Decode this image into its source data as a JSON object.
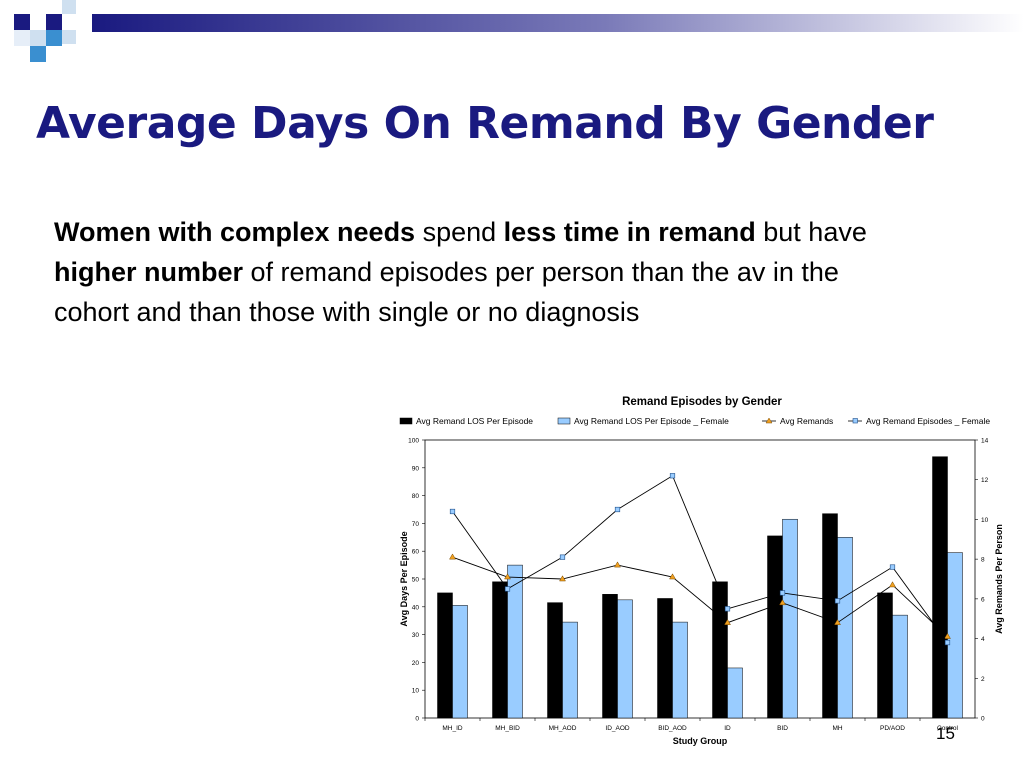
{
  "slide": {
    "title": "Average Days On Remand By Gender",
    "body": [
      {
        "text": "Women with complex needs",
        "bold": true
      },
      {
        "text": " spend ",
        "bold": false
      },
      {
        "text": "less time in remand",
        "bold": true
      },
      {
        "text": " but have ",
        "bold": false
      },
      {
        "text": "higher number",
        "bold": true
      },
      {
        "text": " of remand episodes per person than the av in the cohort and than those with single or no diagnosis",
        "bold": false
      }
    ],
    "slide_number": "15",
    "colors": {
      "title": "#1a1a80",
      "decor_dark": "#1a1a80",
      "decor_light": "#3a8fd0"
    }
  },
  "chart_data": {
    "type": "bar",
    "title": "Remand Episodes by Gender",
    "xlabel": "Study Group",
    "ylabel": "Avg Days Per Episode",
    "y2label": "Avg Remands Per Person",
    "categories": [
      "MH_ID",
      "MH_BID",
      "MH_AOD",
      "ID_AOD",
      "BID_AOD",
      "ID",
      "BID",
      "MH",
      "PD/AOD",
      "Control"
    ],
    "ylim": [
      0,
      100
    ],
    "y2lim": [
      0,
      14
    ],
    "yticks": [
      "0",
      "10",
      "20",
      "30",
      "40",
      "50",
      "60",
      "70",
      "80",
      "90",
      "100"
    ],
    "y2ticks": [
      "0",
      "2",
      "4",
      "6",
      "8",
      "10",
      "12",
      "14"
    ],
    "legend_position": "top",
    "series": [
      {
        "name": "Avg Remand LOS Per Episode",
        "type": "bar",
        "axis": "left",
        "color": "#000000",
        "values": [
          45,
          49,
          41.5,
          44.5,
          43,
          49,
          65.5,
          73.5,
          45,
          94
        ]
      },
      {
        "name": "Avg Remand LOS Per Episode _ Female",
        "type": "bar",
        "axis": "left",
        "color": "#99ccff",
        "values": [
          40.5,
          55,
          34.5,
          42.5,
          34.5,
          18,
          71.5,
          65,
          37,
          59.5
        ]
      },
      {
        "name": "Avg Remands",
        "type": "line",
        "axis": "right",
        "color": "#000000",
        "marker": "triangle",
        "marker_color": "#f0a020",
        "values": [
          8.1,
          7.1,
          7.0,
          7.7,
          7.1,
          4.8,
          5.8,
          4.8,
          6.7,
          4.1
        ]
      },
      {
        "name": "Avg Remand Episodes _ Female",
        "type": "line",
        "axis": "right",
        "color": "#000000",
        "marker": "square",
        "marker_color": "#99ccff",
        "values": [
          10.4,
          6.5,
          8.1,
          10.5,
          12.2,
          5.5,
          6.3,
          5.9,
          7.6,
          3.8
        ]
      }
    ]
  }
}
